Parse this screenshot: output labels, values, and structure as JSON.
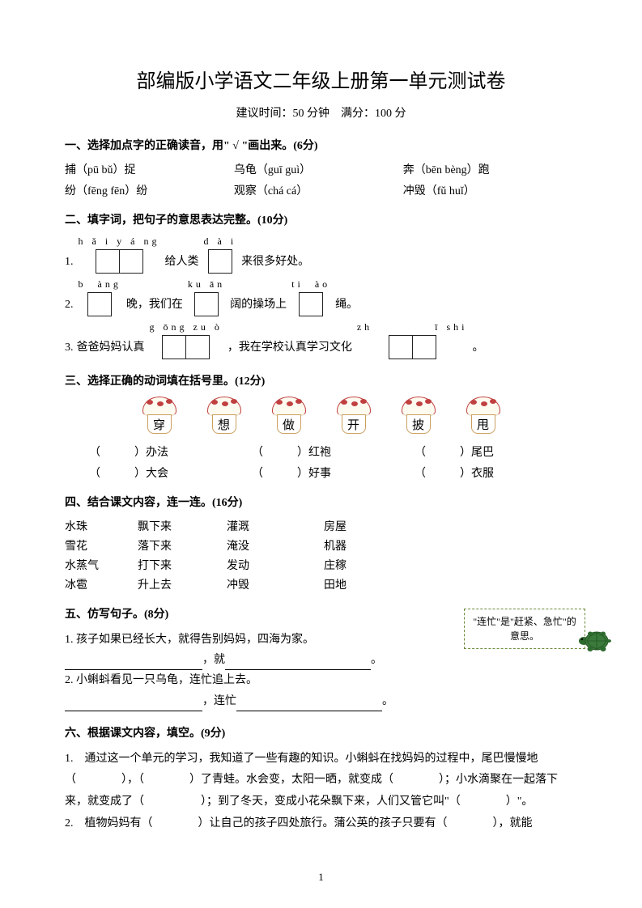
{
  "title": "部编版小学语文二年级上册第一单元测试卷",
  "subtitle": "建议时间：50 分钟　满分：100 分",
  "q1": {
    "head": "一、选择加点字的正确读音，用\" √ \"画出来。(6分)",
    "items": [
      [
        "捕（pū  bǔ）捉",
        "乌龟（guī  guì）",
        "奔（bēn  bèng）跑"
      ],
      [
        "纷（fēng  fēn）纷",
        "观察（chá  cá）",
        "冲毁（fǔ   huǐ）"
      ]
    ]
  },
  "q2": {
    "head": "二、填字词，把句子的意思表达完整。(10分)",
    "lines": [
      {
        "num": "1.",
        "parts": [
          {
            "py": "h ǎ i y á ng",
            "n": 2
          },
          {
            "text": "给人类"
          },
          {
            "py": "d à i",
            "n": 1
          },
          {
            "text": "来很多好处。"
          }
        ]
      },
      {
        "num": "2.",
        "parts": [
          {
            "py": "b  àng",
            "n": 1
          },
          {
            "text": "晚，我们在"
          },
          {
            "py": "ku ān",
            "n": 1
          },
          {
            "text": "阔的操场上"
          },
          {
            "py": "ti  ào",
            "n": 1
          },
          {
            "text": "绳。"
          }
        ]
      },
      {
        "num": "3.",
        "parts": [
          {
            "text": "爸爸妈妈认真"
          },
          {
            "py": "g ōng zu ò",
            "n": 2
          },
          {
            "text": "，我在学校认真学习文化"
          },
          {
            "py": "zh           ī shi",
            "n": 2
          },
          {
            "text": "。"
          }
        ]
      }
    ]
  },
  "q3": {
    "head": "三、选择正确的动词填在括号里。(12分)",
    "mushrooms": [
      "穿",
      "想",
      "做",
      "开",
      "披",
      "甩"
    ],
    "grid": [
      [
        "（　　　）办法",
        "（　　　）红袍",
        "（　　　）尾巴"
      ],
      [
        "（　　　）大会",
        "（　　　）好事",
        "（　　　）衣服"
      ]
    ]
  },
  "q4": {
    "head": "四、结合课文内容，连一连。(16分)",
    "rows": [
      [
        "水珠",
        "飘下来",
        "灌溉",
        "房屋"
      ],
      [
        "雪花",
        "落下来",
        "淹没",
        "机器"
      ],
      [
        "水蒸气",
        "打下来",
        "发动",
        "庄稼"
      ],
      [
        "冰雹",
        "升上去",
        "冲毁",
        "田地"
      ]
    ]
  },
  "q5": {
    "head": "五、仿写句子。(8分)",
    "l1": "1. 孩子如果已经长大，就得告别妈妈，四海为家。",
    "mid": "，就",
    "end": "。",
    "l2": "2. 小蝌蚪看见一只乌龟，连忙追上去。",
    "mid2": "，连忙",
    "note": "\"连忙\"是\"赶紧、急忙\"的意思。"
  },
  "q6": {
    "head": "六、根据课文内容，填空。(9分)",
    "p1a": "1.　通过这一个单元的学习，我知道了一些有趣的知识。小蝌蚪在找妈妈的过程中，尾巴慢慢地（　　　　），（　　　　）了青蛙。水会变，太阳一晒，就变成（　　　　）；小水滴聚在一起落下来，就变成了（　　　　　）；到了冬天，变成小花朵飘下来，人们又管它叫\"（　　　　）\"。",
    "p2": "2.　植物妈妈有（　　　　）让自己的孩子四处旅行。蒲公英的孩子只要有（　　　　），就能"
  },
  "pageNumber": "1",
  "colors": {
    "mush_border": "#c04040",
    "mush_stem": "#caa060",
    "note_border": "#6a8a3a",
    "turtle_body": "#2e6b2e",
    "turtle_shell": "#3a7a3a"
  }
}
